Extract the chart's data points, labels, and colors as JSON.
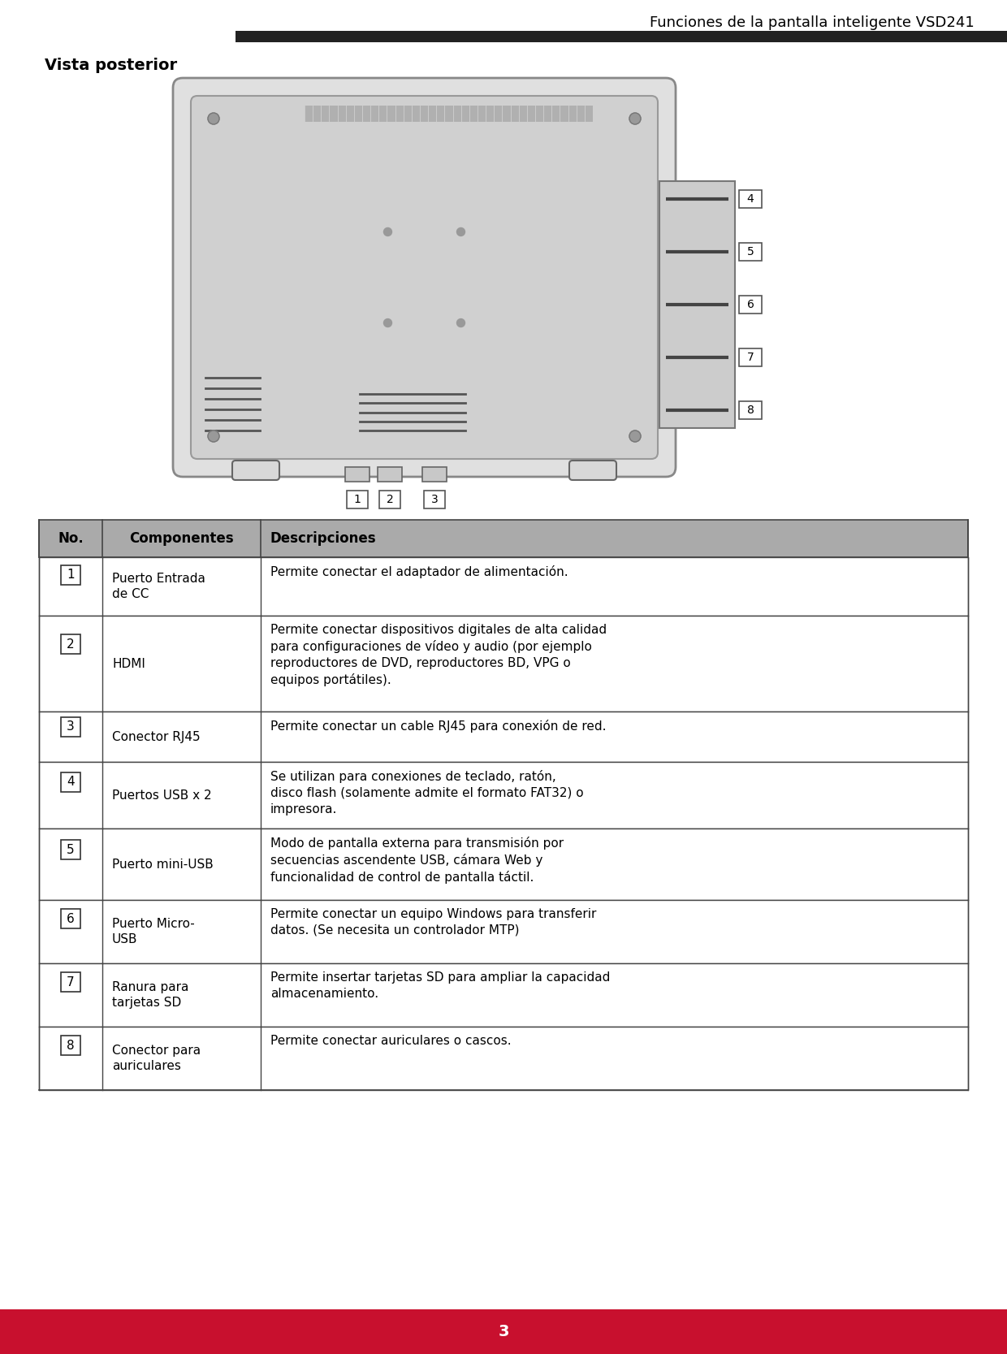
{
  "page_title": "Funciones de la pantalla inteligente VSD241",
  "section_title": "Vista posterior",
  "header_bg": "#222222",
  "red_bar_color": "#c8102e",
  "page_number": "3",
  "table_header": [
    "No.",
    "Componentes",
    "Descripciones"
  ],
  "table_header_bg": "#aaaaaa",
  "table_border_color": "#555555",
  "rows": [
    {
      "num": "1",
      "component": "Puerto Entrada\nde CC",
      "description": "Permite conectar el adaptador de alimentación."
    },
    {
      "num": "2",
      "component": "HDMI",
      "description": "Permite conectar dispositivos digitales de alta calidad\npara configuraciones de vídeo y audio (por ejemplo\nreproductores de DVD, reproductores BD, VPG o\nequipos portátiles)."
    },
    {
      "num": "3",
      "component": "Conector RJ45",
      "description": "Permite conectar un cable RJ45 para conexión de red."
    },
    {
      "num": "4",
      "component": "Puertos USB x 2",
      "description": "Se utilizan para conexiones de teclado, ratón,\ndisco flash (solamente admite el formato FAT32) o\nimpresora."
    },
    {
      "num": "5",
      "component": "Puerto mini-USB",
      "description": "Modo de pantalla externa para transmisión por\nsecuencias ascendente USB, cámara Web y\nfuncionalidad de control de pantalla táctil."
    },
    {
      "num": "6",
      "component": "Puerto Micro-\nUSB",
      "description": "Permite conectar un equipo Windows para transferir\ndatos. (Se necesita un controlador MTP)"
    },
    {
      "num": "7",
      "component": "Ranura para\ntarjetas SD",
      "description": "Permite insertar tarjetas SD para ampliar la capacidad\nalmacenamiento."
    },
    {
      "num": "8",
      "component": "Conector para\nauriculares",
      "description": "Permite conectar auriculares o cascos."
    }
  ],
  "device_color": "#e0e0e0",
  "device_inner_color": "#d0d0d0",
  "port_panel_color": "#cccccc"
}
